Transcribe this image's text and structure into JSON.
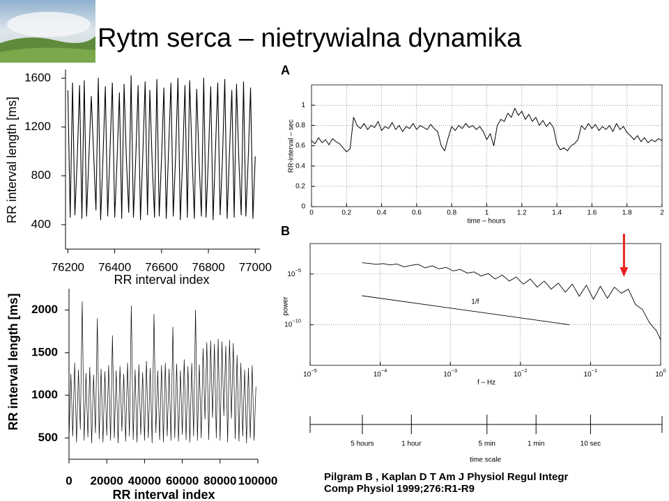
{
  "title": "Rytm serca – nietrywialna dynamika",
  "citation": [
    "Pilgram B , Kaplan D T Am J Physiol Regul Integr",
    "Comp Physiol 1999;276:R1-R9"
  ],
  "chart_data": [
    {
      "type": "line",
      "xlabel": "RR interval index",
      "ylabel": "RR interval length [ms]",
      "xlim": [
        76190,
        77020
      ],
      "ylim": [
        200,
        1670
      ],
      "xticks": [
        76200,
        76400,
        76600,
        76800,
        77000
      ],
      "yticks": [
        400,
        800,
        1200,
        1600
      ],
      "grid": false,
      "x": [
        76200,
        76210,
        76220,
        76230,
        76240,
        76250,
        76260,
        76270,
        76280,
        76290,
        76300,
        76310,
        76320,
        76330,
        76340,
        76350,
        76360,
        76370,
        76380,
        76390,
        76400,
        76410,
        76420,
        76430,
        76440,
        76450,
        76460,
        76470,
        76480,
        76490,
        76500,
        76510,
        76520,
        76530,
        76540,
        76550,
        76560,
        76570,
        76580,
        76590,
        76600,
        76610,
        76620,
        76630,
        76640,
        76650,
        76660,
        76670,
        76680,
        76690,
        76700,
        76710,
        76720,
        76730,
        76740,
        76750,
        76760,
        76770,
        76780,
        76790,
        76800,
        76810,
        76820,
        76830,
        76840,
        76850,
        76860,
        76870,
        76880,
        76890,
        76900,
        76910,
        76920,
        76930,
        76940,
        76950,
        76960,
        76970,
        76980,
        76990,
        77000
      ],
      "series": [
        {
          "color": "#000000",
          "values": [
            1500,
            460,
            1560,
            480,
            940,
            1540,
            450,
            1580,
            470,
            960,
            1450,
            980,
            520,
            1600,
            440,
            950,
            1530,
            470,
            1010,
            1560,
            460,
            920,
            1480,
            450,
            1550,
            930,
            500,
            1620,
            460,
            950,
            1540,
            440,
            970,
            1570,
            480,
            1500,
            910,
            460,
            1590,
            470,
            940,
            1520,
            450,
            1010,
            1560,
            470,
            960,
            1600,
            440,
            930,
            1540,
            460,
            1580,
            980,
            450,
            1510,
            930,
            470,
            1600,
            460,
            950,
            1530,
            440,
            1000,
            1560,
            480,
            940,
            1590,
            450,
            990,
            1500,
            460,
            1550,
            930,
            480,
            1570,
            470,
            940,
            1520,
            450,
            960
          ]
        }
      ]
    },
    {
      "type": "line",
      "xlabel": "RR interval index",
      "ylabel": "RR interval length [ms]",
      "xlim": [
        0,
        100000
      ],
      "ylim": [
        250,
        2250
      ],
      "xticks": [
        0,
        20000,
        40000,
        60000,
        80000,
        100000
      ],
      "yticks": [
        500,
        1000,
        1500,
        2000
      ],
      "grid": false,
      "x": [
        0,
        1000,
        2000,
        3000,
        4000,
        5000,
        6000,
        7000,
        8000,
        9000,
        10000,
        11000,
        12000,
        13000,
        14000,
        15000,
        16000,
        17000,
        18000,
        19000,
        20000,
        21000,
        22000,
        23000,
        24000,
        25000,
        26000,
        27000,
        28000,
        29000,
        30000,
        31000,
        32000,
        33000,
        34000,
        35000,
        36000,
        37000,
        38000,
        39000,
        40000,
        41000,
        42000,
        43000,
        44000,
        45000,
        46000,
        47000,
        48000,
        49000,
        50000,
        51000,
        52000,
        53000,
        54000,
        55000,
        56000,
        57000,
        58000,
        59000,
        60000,
        61000,
        62000,
        63000,
        64000,
        65000,
        66000,
        67000,
        68000,
        69000,
        70000,
        71000,
        72000,
        73000,
        74000,
        75000,
        76000,
        77000,
        78000,
        79000,
        80000,
        81000,
        82000,
        83000,
        84000,
        85000,
        86000,
        87000,
        88000,
        89000,
        90000,
        91000,
        92000,
        93000,
        94000,
        95000,
        96000,
        97000,
        98000,
        99000
      ],
      "series": [
        {
          "color": "#000000",
          "values": [
            480,
            1250,
            520,
            1380,
            450,
            1300,
            600,
            2100,
            470,
            1260,
            510,
            1330,
            440,
            1240,
            560,
            1900,
            490,
            1310,
            450,
            1280,
            530,
            1350,
            470,
            1700,
            500,
            1290,
            440,
            1340,
            580,
            1250,
            460,
            1380,
            520,
            2050,
            480,
            1300,
            450,
            1360,
            540,
            1270,
            470,
            1400,
            500,
            1320,
            440,
            1950,
            560,
            1290,
            480,
            1350,
            450,
            1380,
            520,
            1310,
            470,
            1800,
            500,
            1370,
            460,
            1290,
            540,
            1420,
            480,
            1340,
            450,
            1380,
            520,
            2000,
            470,
            1360,
            500,
            1550,
            720,
            1620,
            480,
            1640,
            740,
            1600,
            500,
            1660,
            470,
            1630,
            760,
            1580,
            450,
            1650,
            730,
            1610,
            490,
            1470,
            460,
            1380,
            520,
            1300,
            440,
            1320,
            500,
            1350,
            470,
            1100
          ]
        }
      ]
    },
    {
      "type": "line",
      "panel": "A",
      "xlabel": "time – hours",
      "ylabel": "RR-interval – sec",
      "xlim": [
        0,
        2
      ],
      "ylim": [
        0,
        1.2
      ],
      "xticks": [
        0,
        0.2,
        0.4,
        0.6,
        0.8,
        1,
        1.2,
        1.4,
        1.6,
        1.8,
        2
      ],
      "yticks": [
        0,
        0.2,
        0.4,
        0.6,
        0.8,
        1
      ],
      "grid": true,
      "x": [
        0,
        0.02,
        0.04,
        0.06,
        0.08,
        0.1,
        0.12,
        0.14,
        0.16,
        0.18,
        0.2,
        0.22,
        0.24,
        0.26,
        0.28,
        0.3,
        0.32,
        0.34,
        0.36,
        0.38,
        0.4,
        0.42,
        0.44,
        0.46,
        0.48,
        0.5,
        0.52,
        0.54,
        0.56,
        0.58,
        0.6,
        0.62,
        0.64,
        0.66,
        0.68,
        0.7,
        0.72,
        0.74,
        0.76,
        0.78,
        0.8,
        0.82,
        0.84,
        0.86,
        0.88,
        0.9,
        0.92,
        0.94,
        0.96,
        0.98,
        1,
        1.02,
        1.04,
        1.06,
        1.08,
        1.1,
        1.12,
        1.14,
        1.16,
        1.18,
        1.2,
        1.22,
        1.24,
        1.26,
        1.28,
        1.3,
        1.32,
        1.34,
        1.36,
        1.38,
        1.4,
        1.42,
        1.44,
        1.46,
        1.48,
        1.5,
        1.52,
        1.54,
        1.56,
        1.58,
        1.6,
        1.62,
        1.64,
        1.66,
        1.68,
        1.7,
        1.72,
        1.74,
        1.76,
        1.78,
        1.8,
        1.82,
        1.84,
        1.86,
        1.88,
        1.9,
        1.92,
        1.94,
        1.96,
        1.98,
        2
      ],
      "series": [
        {
          "color": "#000000",
          "values": [
            0.65,
            0.62,
            0.68,
            0.63,
            0.66,
            0.61,
            0.67,
            0.64,
            0.62,
            0.58,
            0.54,
            0.57,
            0.88,
            0.8,
            0.77,
            0.82,
            0.76,
            0.8,
            0.78,
            0.84,
            0.75,
            0.79,
            0.77,
            0.83,
            0.76,
            0.8,
            0.74,
            0.79,
            0.77,
            0.82,
            0.76,
            0.8,
            0.78,
            0.76,
            0.81,
            0.77,
            0.74,
            0.6,
            0.55,
            0.68,
            0.79,
            0.75,
            0.8,
            0.77,
            0.82,
            0.78,
            0.8,
            0.76,
            0.79,
            0.74,
            0.66,
            0.72,
            0.6,
            0.8,
            0.86,
            0.84,
            0.92,
            0.88,
            0.97,
            0.9,
            0.94,
            0.86,
            0.91,
            0.84,
            0.88,
            0.8,
            0.85,
            0.79,
            0.83,
            0.78,
            0.62,
            0.56,
            0.58,
            0.55,
            0.6,
            0.62,
            0.66,
            0.8,
            0.76,
            0.82,
            0.77,
            0.81,
            0.75,
            0.79,
            0.76,
            0.8,
            0.74,
            0.82,
            0.76,
            0.79,
            0.73,
            0.7,
            0.66,
            0.7,
            0.64,
            0.68,
            0.63,
            0.66,
            0.64,
            0.67,
            0.65
          ]
        }
      ]
    },
    {
      "type": "line",
      "panel": "B",
      "xlabel": "f – Hz",
      "ylabel": "power",
      "log_x": true,
      "log_y": true,
      "xlim": [
        1e-05,
        1
      ],
      "ylim": [
        1e-14,
        0.01
      ],
      "grid": true,
      "xticks": [
        {
          "value": 1e-05,
          "label": "10",
          "exponent": "−5"
        },
        {
          "value": 0.0001,
          "label": "10",
          "exponent": "−4"
        },
        {
          "value": 0.001,
          "label": "10",
          "exponent": "−3"
        },
        {
          "value": 0.01,
          "label": "10",
          "exponent": "−2"
        },
        {
          "value": 0.1,
          "label": "10",
          "exponent": "−1"
        },
        {
          "value": 1,
          "label": "10",
          "exponent": "0"
        }
      ],
      "yticks": [
        {
          "value": 1e-05,
          "label": "10",
          "exponent": "−5"
        },
        {
          "value": 1e-10,
          "label": "10",
          "exponent": "−10"
        }
      ],
      "series": [
        {
          "color": "#000000",
          "x": [
            5.5e-05,
            6.92e-05,
            8.71e-05,
            0.00011,
            0.000138,
            0.000174,
            0.000219,
            0.000275,
            0.000347,
            0.000437,
            0.00055,
            0.000692,
            0.000871,
            0.0011,
            0.00138,
            0.00174,
            0.00219,
            0.00275,
            0.00347,
            0.00437,
            0.0055,
            0.00692,
            0.00871,
            0.011,
            0.0138,
            0.0174,
            0.0219,
            0.0275,
            0.0347,
            0.0437,
            0.055,
            0.0692,
            0.0871,
            0.11,
            0.138,
            0.174,
            0.219,
            0.275,
            0.347,
            0.437,
            0.55,
            0.692,
            0.871,
            1
          ],
          "values": [
            0.000126,
            0.000112,
            8.9e-05,
            0.000105,
            7.9e-05,
            9.5e-05,
            5e-05,
            7.1e-05,
            8.9e-05,
            4e-05,
            6.3e-05,
            3.2e-05,
            4.5e-05,
            2e-05,
            2.8e-05,
            1.26e-05,
            1.6e-05,
            6.3e-06,
            1.12e-05,
            3.2e-06,
            7.9e-06,
            2e-06,
            5e-06,
            1e-06,
            3.2e-06,
            5e-07,
            2e-06,
            3.2e-07,
            1.26e-06,
            1.6e-07,
            1e-06,
            6.3e-08,
            7.9e-07,
            3.2e-08,
            6.3e-07,
            4e-08,
            5e-07,
            1.26e-07,
            3.2e-07,
            1e-08,
            3.2e-09,
            1.6e-10,
            2.5e-11,
            3.2e-12
          ]
        },
        {
          "name": "1/f",
          "color": "#000000",
          "x": [
            5.5e-05,
            0.05
          ],
          "values": [
            7.2e-08,
            1e-10
          ]
        }
      ],
      "arrow_x": 0.3,
      "arrow_color": "#e8231f",
      "time_scale": {
        "label": "time scale",
        "ticks": [
          {
            "value": 5.56e-05,
            "label": "5 hours"
          },
          {
            "value": 0.000278,
            "label": "1 hour"
          },
          {
            "value": 0.00333,
            "label": "5 min"
          },
          {
            "value": 0.0167,
            "label": "1 min"
          },
          {
            "value": 0.1,
            "label": "10 sec"
          }
        ]
      }
    }
  ]
}
